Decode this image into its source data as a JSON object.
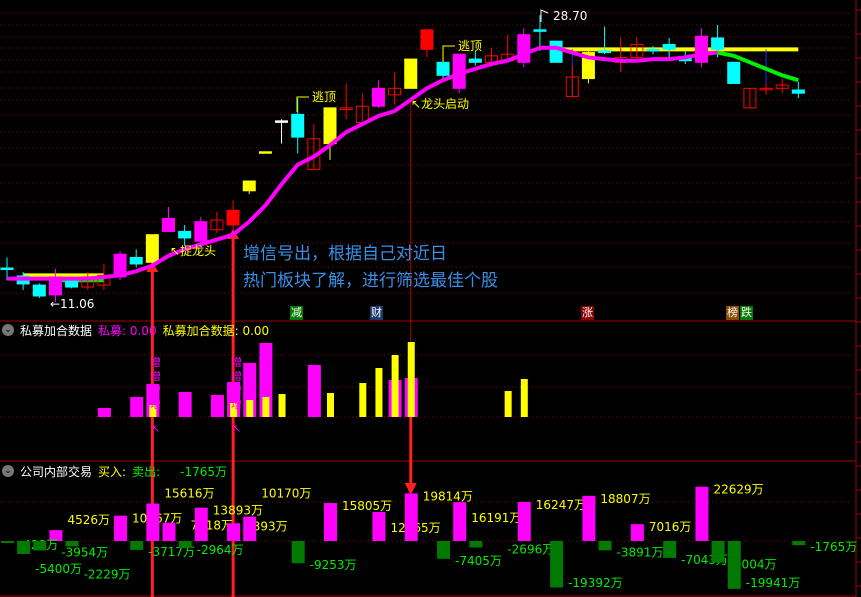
{
  "chart_data": [
    {
      "type": "candlestick",
      "title": "",
      "price_high_label": "28.70",
      "price_low_label": "←11.06",
      "candles": [
        {
          "o": 13.15,
          "c": 13.15,
          "h": 13.8,
          "l": 12.4,
          "color": "cyan"
        },
        {
          "o": 12.66,
          "c": 12.17,
          "h": 12.9,
          "l": 11.8,
          "color": "cyan"
        },
        {
          "o": 12.1,
          "c": 11.43,
          "h": 12.2,
          "l": 11.3,
          "color": "cyan"
        },
        {
          "o": 11.5,
          "c": 12.6,
          "h": 13.1,
          "l": 11.06,
          "color": "magenta"
        },
        {
          "o": 12.35,
          "c": 11.98,
          "h": 12.4,
          "l": 11.9,
          "color": "cyan"
        },
        {
          "o": 11.98,
          "c": 12.6,
          "h": 12.9,
          "l": 11.8,
          "color": "red-hollow"
        },
        {
          "o": 12.1,
          "c": 12.7,
          "h": 13.4,
          "l": 11.8,
          "color": "red-hollow"
        },
        {
          "o": 12.6,
          "c": 14.0,
          "h": 14.2,
          "l": 12.4,
          "color": "magenta"
        },
        {
          "o": 13.8,
          "c": 13.4,
          "h": 14.3,
          "l": 13.2,
          "color": "cyan"
        },
        {
          "o": 13.5,
          "c": 15.2,
          "h": 15.2,
          "l": 13.3,
          "color": "yellow"
        },
        {
          "o": 15.4,
          "c": 16.2,
          "h": 16.9,
          "l": 15.4,
          "color": "magenta"
        },
        {
          "o": 15.4,
          "c": 15.0,
          "h": 15.8,
          "l": 14.5,
          "color": "cyan"
        },
        {
          "o": 14.8,
          "c": 16.0,
          "h": 16.3,
          "l": 14.5,
          "color": "magenta"
        },
        {
          "o": 15.5,
          "c": 16.1,
          "h": 16.6,
          "l": 15.3,
          "color": "red-hollow"
        },
        {
          "o": 15.8,
          "c": 16.7,
          "h": 17.3,
          "l": 15.5,
          "color": "red"
        },
        {
          "o": 17.9,
          "c": 18.5,
          "h": 18.5,
          "l": 17.7,
          "color": "yellow"
        },
        {
          "o": 20.3,
          "c": 20.3,
          "h": 20.3,
          "l": 20.3,
          "color": "yellow"
        },
        {
          "o": 22.2,
          "c": 22.2,
          "h": 22.3,
          "l": 20.8,
          "color": "white"
        },
        {
          "o": 22.6,
          "c": 21.2,
          "h": 23.6,
          "l": 20.2,
          "color": "cyan"
        },
        {
          "o": 19.2,
          "c": 21.1,
          "h": 22.0,
          "l": 19.2,
          "color": "red-hollow"
        },
        {
          "o": 20.8,
          "c": 23.0,
          "h": 23.0,
          "l": 19.8,
          "color": "yellow"
        },
        {
          "o": 22.9,
          "c": 23.0,
          "h": 24.5,
          "l": 22.3,
          "color": "red-hollow"
        },
        {
          "o": 22.1,
          "c": 23.1,
          "h": 23.9,
          "l": 22.1,
          "color": "red-hollow"
        },
        {
          "o": 23.1,
          "c": 24.2,
          "h": 24.7,
          "l": 23.0,
          "color": "magenta"
        },
        {
          "o": 23.8,
          "c": 24.2,
          "h": 25.2,
          "l": 23.2,
          "color": "red-hollow"
        },
        {
          "o": 24.2,
          "c": 26.0,
          "h": 26.0,
          "l": 24.2,
          "color": "yellow"
        },
        {
          "o": 26.6,
          "c": 27.8,
          "h": 27.8,
          "l": 26.1,
          "color": "red"
        },
        {
          "o": 25.8,
          "c": 25.0,
          "h": 26.8,
          "l": 24.8,
          "color": "cyan"
        },
        {
          "o": 24.2,
          "c": 26.3,
          "h": 26.3,
          "l": 23.9,
          "color": "magenta"
        },
        {
          "o": 26.0,
          "c": 25.8,
          "h": 26.5,
          "l": 25.6,
          "color": "cyan"
        },
        {
          "o": 25.8,
          "c": 26.2,
          "h": 26.7,
          "l": 25.5,
          "color": "red-hollow"
        },
        {
          "o": 25.9,
          "c": 26.3,
          "h": 27.5,
          "l": 25.8,
          "color": "red-hollow"
        },
        {
          "o": 25.8,
          "c": 27.5,
          "h": 27.9,
          "l": 25.5,
          "color": "magenta"
        },
        {
          "o": 27.8,
          "c": 27.8,
          "h": 28.7,
          "l": 26.5,
          "color": "cyan"
        },
        {
          "o": 27.1,
          "c": 25.8,
          "h": 27.1,
          "l": 25.8,
          "color": "cyan"
        },
        {
          "o": 23.7,
          "c": 24.9,
          "h": 25.6,
          "l": 23.7,
          "color": "red-hollow"
        },
        {
          "o": 24.8,
          "c": 26.4,
          "h": 26.6,
          "l": 24.5,
          "color": "yellow"
        },
        {
          "o": 26.5,
          "c": 26.4,
          "h": 28.0,
          "l": 26.3,
          "color": "cyan"
        },
        {
          "o": 25.8,
          "c": 26.1,
          "h": 27.3,
          "l": 25.2,
          "color": "red-hollow"
        },
        {
          "o": 26.1,
          "c": 26.9,
          "h": 27.3,
          "l": 25.8,
          "color": "red-hollow"
        },
        {
          "o": 26.6,
          "c": 26.5,
          "h": 26.8,
          "l": 26.3,
          "color": "cyan"
        },
        {
          "o": 26.9,
          "c": 26.6,
          "h": 27.3,
          "l": 26.1,
          "color": "cyan"
        },
        {
          "o": 26.1,
          "c": 25.9,
          "h": 26.5,
          "l": 25.7,
          "color": "cyan"
        },
        {
          "o": 25.8,
          "c": 27.4,
          "h": 27.9,
          "l": 25.5,
          "color": "magenta"
        },
        {
          "o": 27.3,
          "c": 26.6,
          "h": 28.1,
          "l": 26.1,
          "color": "cyan"
        },
        {
          "o": 25.8,
          "c": 24.5,
          "h": 25.8,
          "l": 24.5,
          "color": "cyan"
        },
        {
          "o": 23.0,
          "c": 24.2,
          "h": 24.2,
          "l": 23.0,
          "color": "red-hollow"
        },
        {
          "o": 24.2,
          "c": 24.2,
          "h": 24.5,
          "l": 23.8,
          "color": "red-hollow"
        },
        {
          "o": 24.2,
          "c": 24.4,
          "h": 24.8,
          "l": 23.9,
          "color": "red-hollow"
        },
        {
          "o": 24.1,
          "c": 23.9,
          "h": 24.6,
          "l": 23.6,
          "color": "cyan"
        }
      ],
      "trend_line": [
        12.5,
        12.5,
        12.5,
        12.5,
        12.5,
        12.5,
        12.6,
        12.7,
        12.95,
        13.3,
        13.9,
        14.3,
        14.6,
        14.9,
        15.2,
        16.0,
        17.0,
        18.3,
        19.5,
        20.0,
        20.7,
        21.5,
        22.0,
        22.5,
        22.8,
        23.5,
        24.2,
        24.7,
        25.1,
        25.4,
        25.7,
        25.9,
        26.3,
        26.7,
        26.7,
        26.4,
        26.1,
        26.0,
        25.9,
        25.9,
        26.0,
        26.0,
        26.1,
        26.3,
        26.4
      ],
      "down_line": {
        "start_index": 44,
        "values": [
          26.4,
          26.2,
          25.8,
          25.4,
          25.0,
          24.7
        ]
      },
      "resistance_line": {
        "start_index": 34,
        "end_index": 49,
        "value": 26.6
      },
      "annotations": [
        {
          "text": "逃顶",
          "index": 18
        },
        {
          "text": "逃顶",
          "index": 27
        },
        {
          "text": "捉龙头",
          "index": 10
        },
        {
          "text": "龙头启动",
          "index": 25
        }
      ],
      "signal_indices": [
        9,
        14,
        25
      ],
      "colors": {
        "cyan": "#00ffff",
        "magenta": "#ff00ff",
        "yellow": "#ffff00",
        "red": "#ff0000",
        "white": "#ffffff",
        "green": "#00ee00"
      }
    },
    {
      "type": "bar",
      "title": "私募加合数据",
      "series": [
        {
          "name": "私募",
          "color": "#ff00ff",
          "points": [
            [
              6,
              0.9
            ],
            [
              8,
              2.0
            ],
            [
              9,
              3.3
            ],
            [
              11,
              2.5
            ],
            [
              13,
              2.2
            ],
            [
              14,
              3.5
            ],
            [
              15,
              5.4
            ],
            [
              16,
              7.4
            ],
            [
              19,
              5.2
            ],
            [
              24,
              3.7
            ],
            [
              25,
              3.9
            ]
          ]
        },
        {
          "name": "私募加合数据",
          "color": "#ffff00",
          "points": [
            [
              9,
              1.2
            ],
            [
              14,
              1.4
            ],
            [
              15,
              1.7
            ],
            [
              16,
              2.0
            ],
            [
              17,
              2.3
            ],
            [
              20,
              2.4
            ],
            [
              22,
              3.4
            ],
            [
              23,
              4.9
            ],
            [
              24,
              6.2
            ],
            [
              25,
              7.5
            ],
            [
              31,
              2.6
            ],
            [
              32,
              3.8
            ]
          ]
        }
      ],
      "ylim": [
        0,
        9.5
      ]
    },
    {
      "type": "bar",
      "title": "公司内部交易",
      "unit": "万",
      "buy": [
        [
          3,
          4526
        ],
        [
          7,
          10567
        ],
        [
          9,
          15616
        ],
        [
          10,
          7618
        ],
        [
          12,
          13893
        ],
        [
          14,
          7393
        ],
        [
          15,
          10170
        ],
        [
          20,
          15805
        ],
        [
          23,
          12065
        ],
        [
          25,
          19814
        ],
        [
          28,
          16191
        ],
        [
          32,
          16247
        ],
        [
          36,
          18807
        ],
        [
          39,
          7016
        ],
        [
          43,
          22629
        ]
      ],
      "sell": [
        [
          0,
          -428
        ],
        [
          1,
          -5400
        ],
        [
          2,
          -3954
        ],
        [
          4,
          -2229
        ],
        [
          8,
          -3717
        ],
        [
          11,
          -2964
        ],
        [
          18,
          -9253
        ],
        [
          27,
          -7405
        ],
        [
          29,
          -2696
        ],
        [
          34,
          -19392
        ],
        [
          37,
          -3891
        ],
        [
          41,
          -7043
        ],
        [
          44,
          -9004
        ],
        [
          45,
          -19941
        ],
        [
          49,
          -1765
        ]
      ],
      "ylim": [
        -22000,
        23000
      ]
    }
  ],
  "main": {
    "note_line1": "增信号出，根据自己对近日",
    "note_line2": "热门板块了解，进行筛选最佳个股",
    "tags": [
      {
        "text": "减",
        "color": "#007a00"
      },
      {
        "text": "财",
        "color": "#1a3a6a"
      },
      {
        "text": "涨",
        "color": "#8b0000"
      },
      {
        "text": "榜",
        "color": "#8b4a00"
      },
      {
        "text": "跌",
        "color": "#007a00"
      }
    ]
  },
  "panel1": {
    "title": "私募加合数据",
    "val1_label": "私募: 0.00",
    "val2_label": "私募加合数据: 0.00",
    "signal_char": "增",
    "arrow": "↖"
  },
  "panel2": {
    "title": "公司内部交易",
    "buy_label": "买入:",
    "sell_label": "卖出:",
    "value": "-1765万"
  }
}
